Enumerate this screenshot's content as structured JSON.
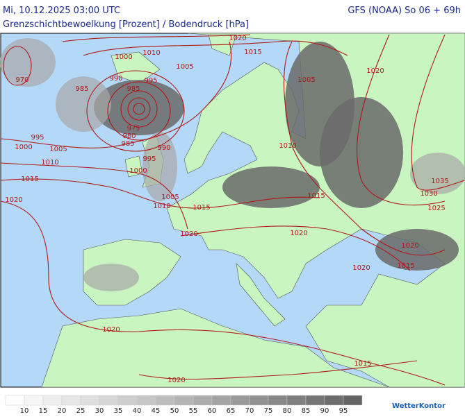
{
  "header": {
    "left": "Mi, 10.12.2025 03:00 UTC",
    "right": "GFS (NOAA) So 06 + 69h",
    "subtitle": "Grenzschichtbewoelkung [Prozent] / Bodendruck [hPa]"
  },
  "isobar_labels": [
    1020,
    1015,
    1010,
    1000,
    1005,
    990,
    995,
    985,
    970,
    985,
    1005,
    1020,
    975,
    980,
    985,
    995,
    1000,
    1005,
    990,
    1010,
    995,
    1010,
    1000,
    1015,
    1035,
    1030,
    1015,
    1005,
    1010,
    1015,
    1020,
    1025,
    1020,
    1020,
    1020,
    1015,
    1020,
    1020,
    1015,
    1020
  ],
  "legend": {
    "labels": [
      10,
      15,
      20,
      25,
      30,
      35,
      40,
      45,
      50,
      55,
      60,
      65,
      70,
      75,
      80,
      85,
      90,
      95
    ],
    "colors": [
      "#ffffff",
      "#f6f6f6",
      "#eeeeee",
      "#e6e6e6",
      "#dedede",
      "#d6d6d6",
      "#cecece",
      "#c6c6c6",
      "#bebebe",
      "#b5b5b5",
      "#acacac",
      "#a3a3a3",
      "#9a9a9a",
      "#919191",
      "#888888",
      "#7f7f7f",
      "#767676",
      "#6d6d6d",
      "#646464"
    ]
  },
  "logo": "WetterKontor"
}
